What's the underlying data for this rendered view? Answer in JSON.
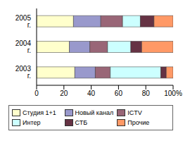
{
  "chart_data": {
    "type": "bar",
    "orientation": "horizontal",
    "stacked": true,
    "grid": false,
    "legend": "bottom",
    "categories": [
      "2005 г.",
      "2004 г.",
      "2003 г."
    ],
    "series": [
      {
        "name": "Студия 1+1",
        "color": "#ffffcc",
        "values": [
          27,
          24,
          28
        ]
      },
      {
        "name": "Новый канал",
        "color": "#9999cc",
        "values": [
          20,
          15,
          15
        ]
      },
      {
        "name": "ICTV",
        "color": "#996677",
        "values": [
          16,
          13,
          11
        ]
      },
      {
        "name": "Интер",
        "color": "#ccffff",
        "values": [
          13,
          17,
          37
        ]
      },
      {
        "name": "СТБ",
        "color": "#663344",
        "values": [
          10,
          8,
          4
        ]
      },
      {
        "name": "Прочие",
        "color": "#ff9966",
        "values": [
          14,
          23,
          5
        ]
      }
    ],
    "xlim": [
      0,
      100
    ],
    "xticks": [
      0,
      20,
      40,
      60,
      80,
      {
        "value": 100,
        "label": "100%"
      }
    ]
  }
}
